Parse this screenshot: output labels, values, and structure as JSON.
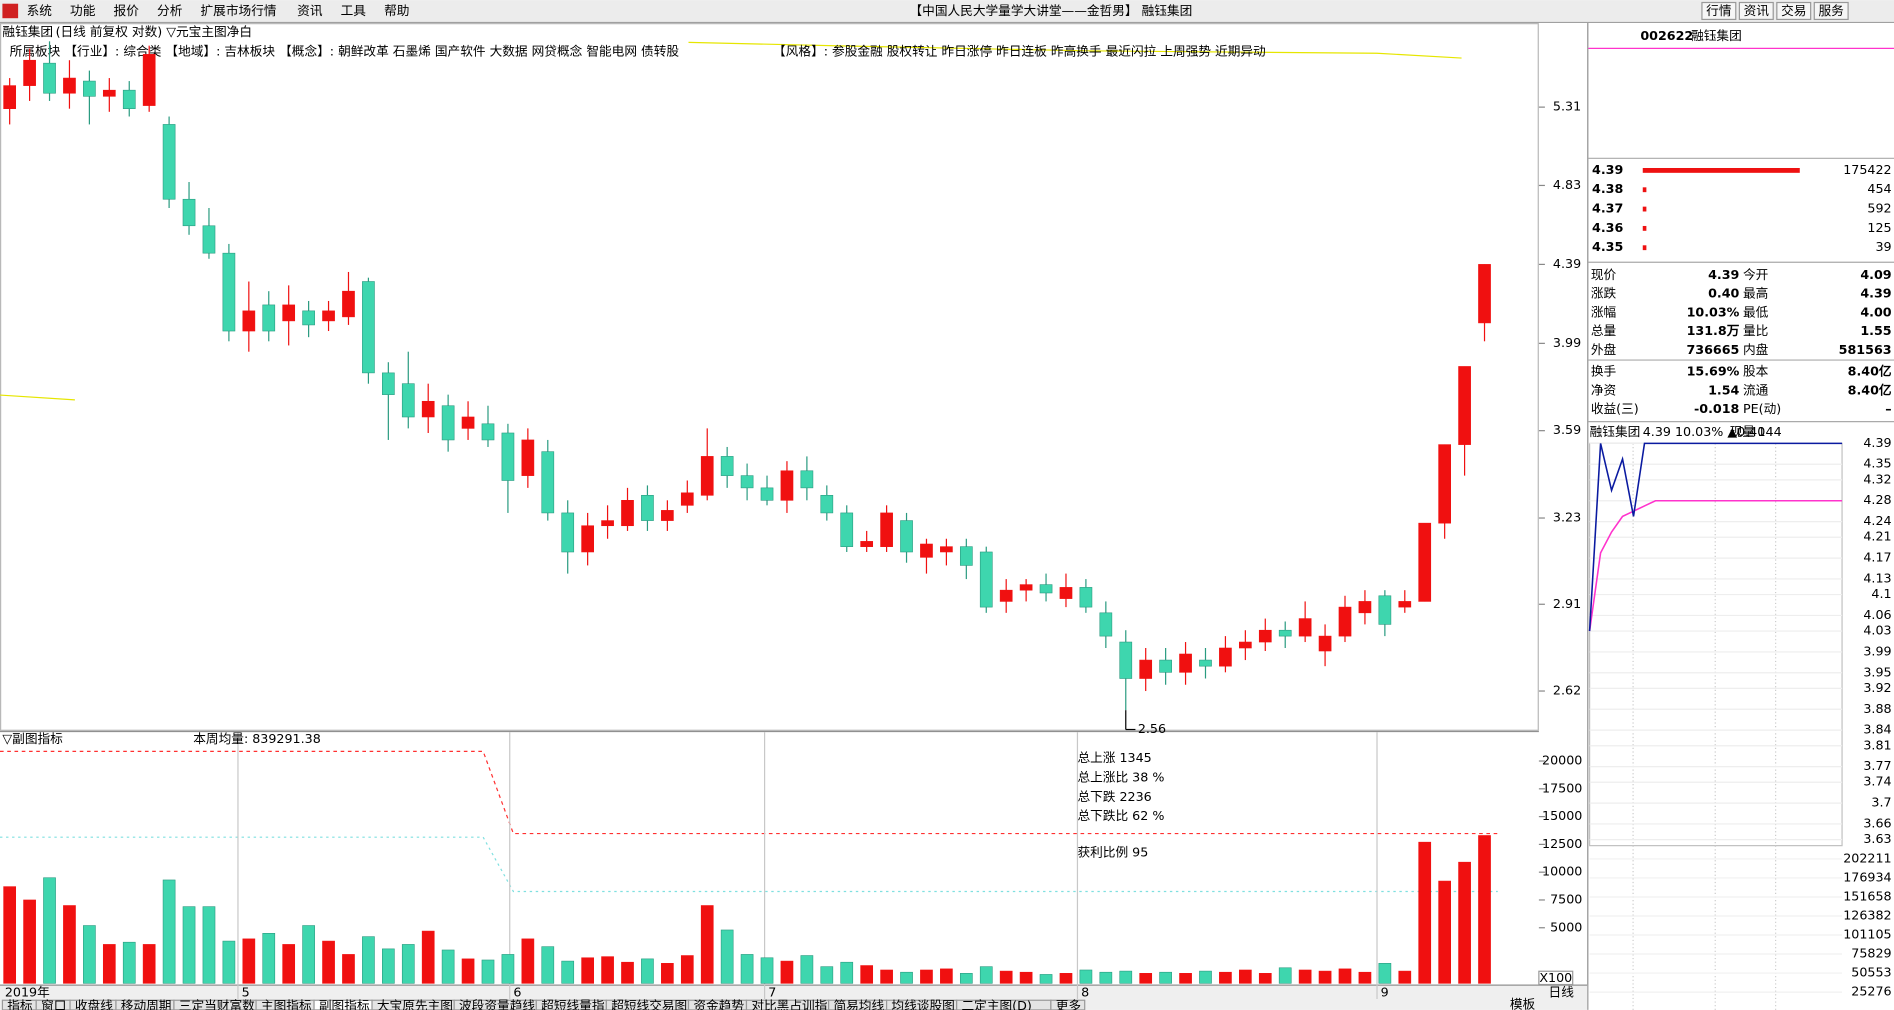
{
  "menu": {
    "items": [
      "系统",
      "功能",
      "报价",
      "分析",
      "扩展市场行情",
      "资讯",
      "工具",
      "帮助"
    ],
    "title": "【中国人民大学量学大讲堂——金哲男】 融钰集团",
    "buttons": [
      "行情",
      "资讯",
      "交易",
      "服务"
    ]
  },
  "main_chart": {
    "type": "candlestick",
    "name": "融钰集团",
    "title": "(日线 前复权 对数) ▽元宝主图净白",
    "info": "所属板块 【行业】: 综合类 【地域】: 吉林板块 【概念】: 朝鲜改革 石墨烯 国产软件 大数据 网贷概念 智能电网 债转股",
    "style_tags": "【风格】: 参股金融 股权转让 昨日涨停 昨日连板 昨高换手 最近闪拉 上周强势 近期异动",
    "log_scale": true,
    "ylim": [
      2.504,
      5.87
    ],
    "yticks": [
      5.31,
      4.83,
      4.39,
      3.99,
      3.59,
      3.23,
      2.91,
      2.62
    ],
    "low_label": 2.56,
    "up_color": "#f01010",
    "down_color": "#3ed6ae",
    "periods": [
      "2019年",
      "5",
      "6",
      "7",
      "8",
      "9"
    ],
    "candles": [
      [
        5.3,
        5.45,
        5.5,
        5.2
      ],
      [
        5.45,
        5.62,
        5.7,
        5.35
      ],
      [
        5.6,
        5.4,
        5.75,
        5.35
      ],
      [
        5.4,
        5.5,
        5.62,
        5.3
      ],
      [
        5.48,
        5.38,
        5.55,
        5.2
      ],
      [
        5.38,
        5.42,
        5.5,
        5.28
      ],
      [
        5.42,
        5.3,
        5.48,
        5.25
      ],
      [
        5.32,
        5.66,
        5.72,
        5.28
      ],
      [
        5.2,
        4.75,
        5.25,
        4.7
      ],
      [
        4.75,
        4.6,
        4.85,
        4.55
      ],
      [
        4.6,
        4.45,
        4.7,
        4.42
      ],
      [
        4.45,
        4.05,
        4.5,
        4.0
      ],
      [
        4.05,
        4.15,
        4.3,
        3.95
      ],
      [
        4.18,
        4.05,
        4.25,
        4.0
      ],
      [
        4.1,
        4.18,
        4.28,
        3.98
      ],
      [
        4.15,
        4.08,
        4.2,
        4.02
      ],
      [
        4.1,
        4.15,
        4.2,
        4.05
      ],
      [
        4.12,
        4.25,
        4.35,
        4.08
      ],
      [
        4.3,
        3.85,
        4.32,
        3.8
      ],
      [
        3.85,
        3.75,
        3.9,
        3.55
      ],
      [
        3.8,
        3.65,
        3.95,
        3.6
      ],
      [
        3.65,
        3.72,
        3.8,
        3.58
      ],
      [
        3.7,
        3.55,
        3.75,
        3.5
      ],
      [
        3.6,
        3.65,
        3.72,
        3.55
      ],
      [
        3.62,
        3.55,
        3.7,
        3.52
      ],
      [
        3.58,
        3.38,
        3.62,
        3.25
      ],
      [
        3.4,
        3.55,
        3.6,
        3.35
      ],
      [
        3.5,
        3.25,
        3.55,
        3.22
      ],
      [
        3.25,
        3.1,
        3.3,
        3.02
      ],
      [
        3.1,
        3.2,
        3.25,
        3.05
      ],
      [
        3.2,
        3.22,
        3.28,
        3.15
      ],
      [
        3.2,
        3.3,
        3.35,
        3.18
      ],
      [
        3.32,
        3.22,
        3.36,
        3.18
      ],
      [
        3.22,
        3.26,
        3.3,
        3.18
      ],
      [
        3.28,
        3.33,
        3.38,
        3.25
      ],
      [
        3.32,
        3.48,
        3.6,
        3.3
      ],
      [
        3.48,
        3.4,
        3.52,
        3.35
      ],
      [
        3.4,
        3.35,
        3.45,
        3.3
      ],
      [
        3.35,
        3.3,
        3.4,
        3.28
      ],
      [
        3.3,
        3.42,
        3.46,
        3.25
      ],
      [
        3.42,
        3.35,
        3.48,
        3.3
      ],
      [
        3.32,
        3.25,
        3.36,
        3.22
      ],
      [
        3.25,
        3.12,
        3.28,
        3.1
      ],
      [
        3.12,
        3.14,
        3.18,
        3.1
      ],
      [
        3.12,
        3.25,
        3.28,
        3.1
      ],
      [
        3.22,
        3.1,
        3.25,
        3.06
      ],
      [
        3.08,
        3.13,
        3.15,
        3.02
      ],
      [
        3.1,
        3.12,
        3.15,
        3.05
      ],
      [
        3.12,
        3.05,
        3.15,
        3.0
      ],
      [
        3.1,
        2.9,
        3.12,
        2.88
      ],
      [
        2.92,
        2.96,
        3.0,
        2.88
      ],
      [
        2.96,
        2.98,
        3.0,
        2.92
      ],
      [
        2.98,
        2.95,
        3.02,
        2.92
      ],
      [
        2.93,
        2.97,
        3.02,
        2.9
      ],
      [
        2.97,
        2.9,
        3.0,
        2.88
      ],
      [
        2.88,
        2.8,
        2.92,
        2.76
      ],
      [
        2.78,
        2.66,
        2.82,
        2.56
      ],
      [
        2.66,
        2.72,
        2.76,
        2.62
      ],
      [
        2.72,
        2.68,
        2.76,
        2.64
      ],
      [
        2.68,
        2.74,
        2.78,
        2.64
      ],
      [
        2.72,
        2.7,
        2.76,
        2.66
      ],
      [
        2.7,
        2.76,
        2.8,
        2.68
      ],
      [
        2.76,
        2.78,
        2.82,
        2.72
      ],
      [
        2.78,
        2.82,
        2.86,
        2.75
      ],
      [
        2.82,
        2.8,
        2.85,
        2.76
      ],
      [
        2.8,
        2.86,
        2.92,
        2.78
      ],
      [
        2.75,
        2.8,
        2.84,
        2.7
      ],
      [
        2.8,
        2.9,
        2.94,
        2.78
      ],
      [
        2.88,
        2.92,
        2.96,
        2.84
      ],
      [
        2.94,
        2.84,
        2.96,
        2.8
      ],
      [
        2.9,
        2.92,
        2.96,
        2.88
      ],
      [
        2.92,
        3.21,
        3.21,
        2.92
      ],
      [
        3.21,
        3.53,
        3.53,
        3.15
      ],
      [
        3.53,
        3.88,
        3.88,
        3.4
      ],
      [
        4.09,
        4.39,
        4.39,
        4.0
      ]
    ]
  },
  "sub_chart": {
    "type": "bar",
    "title": "▽副图指标",
    "weekly_avg": "本周均量: 839291.38",
    "stats": [
      "总上涨 1345",
      "总上涨比 38 %",
      "总下跌 2236",
      "总下跌比 62 %"
    ],
    "profit": "获利比例 95",
    "unit": "X100",
    "ylim": [
      0,
      21300
    ],
    "yticks": [
      20000,
      17500,
      15000,
      12500,
      10000,
      7500,
      5000
    ],
    "volumes": [
      8700,
      7500,
      9500,
      7000,
      5200,
      3500,
      3700,
      3500,
      9300,
      6900,
      6900,
      3800,
      4000,
      4500,
      3500,
      5200,
      3800,
      2600,
      4200,
      3100,
      3500,
      4700,
      3000,
      2200,
      2100,
      2600,
      4000,
      3300,
      2000,
      2300,
      2400,
      1900,
      2200,
      1800,
      2500,
      7000,
      4800,
      2600,
      2300,
      2000,
      2500,
      1500,
      1900,
      1600,
      1200,
      1000,
      1200,
      1300,
      900,
      1500,
      1100,
      1000,
      800,
      900,
      1200,
      1000,
      1100,
      900,
      1000,
      900,
      1100,
      1000,
      1200,
      900,
      1400,
      1200,
      1100,
      1300,
      1000,
      1800,
      1100,
      12700,
      9200,
      10900,
      13300
    ]
  },
  "quote": {
    "code": "002622",
    "name": "融钰集团",
    "order_book": [
      [
        "4.39",
        175422
      ],
      [
        "4.38",
        454
      ],
      [
        "4.37",
        592
      ],
      [
        "4.36",
        125
      ],
      [
        "4.35",
        39
      ]
    ],
    "rows": [
      [
        "现价",
        "4.39",
        "今开",
        "4.09"
      ],
      [
        "涨跌",
        "0.40",
        "最高",
        "4.39"
      ],
      [
        "涨幅",
        "10.03%",
        "最低",
        "4.00"
      ],
      [
        "总量",
        "131.8万",
        "量比",
        "1.55"
      ],
      [
        "外盘",
        "736665",
        "内盘",
        "581563"
      ],
      [
        "换手",
        "15.69%",
        "股本",
        "8.40亿"
      ],
      [
        "净资",
        "1.54",
        "流通",
        "8.40亿"
      ],
      [
        "收益(三)",
        "-0.018",
        "PE(动)",
        "–"
      ]
    ]
  },
  "intraday": {
    "header": [
      "融钰集团",
      "4.39 10.03% ▲0.40",
      "现量",
      "144"
    ],
    "ylim": [
      3.63,
      4.39
    ],
    "price_ticks": [
      4.39,
      4.35,
      4.32,
      4.28,
      4.24,
      4.21,
      4.17,
      4.13,
      4.1,
      4.06,
      4.03,
      3.99,
      3.95,
      3.92,
      3.88,
      3.84,
      3.81,
      3.77,
      3.74,
      3.7,
      3.66,
      3.63
    ],
    "vol_lim": [
      0,
      202211
    ],
    "vol_ticks": [
      202211,
      176934,
      151658,
      126382,
      101105,
      75829,
      50553,
      25276
    ],
    "price": [
      4.03,
      4.39,
      4.3,
      4.36,
      4.25,
      4.39,
      4.39,
      4.39,
      4.39,
      4.39,
      4.39,
      4.39,
      4.39,
      4.39,
      4.39,
      4.39,
      4.39,
      4.39,
      4.39,
      4.39,
      4.39,
      4.39,
      4.39,
      4.39
    ],
    "avg": [
      4.03,
      4.18,
      4.22,
      4.25,
      4.26,
      4.27,
      4.28,
      4.28,
      4.28,
      4.28,
      4.28,
      4.28,
      4.28,
      4.28,
      4.28,
      4.28,
      4.28,
      4.28,
      4.28,
      4.28,
      4.28,
      4.28,
      4.28,
      4.28
    ]
  },
  "bottom_tabs": [
    "指标",
    "窗口",
    "收盘线",
    "移动周期",
    "三定当财富数",
    "主图指标",
    "副图指标",
    "大宝原先主图",
    "波段资量趋线",
    "超短线量指",
    "超短线交易图",
    "资金趋势",
    "对比黑占训指",
    "简易均线",
    "均线谈股图",
    "二定主图(D)",
    "更多"
  ],
  "right_tabs": [
    "模板",
    "日线"
  ]
}
